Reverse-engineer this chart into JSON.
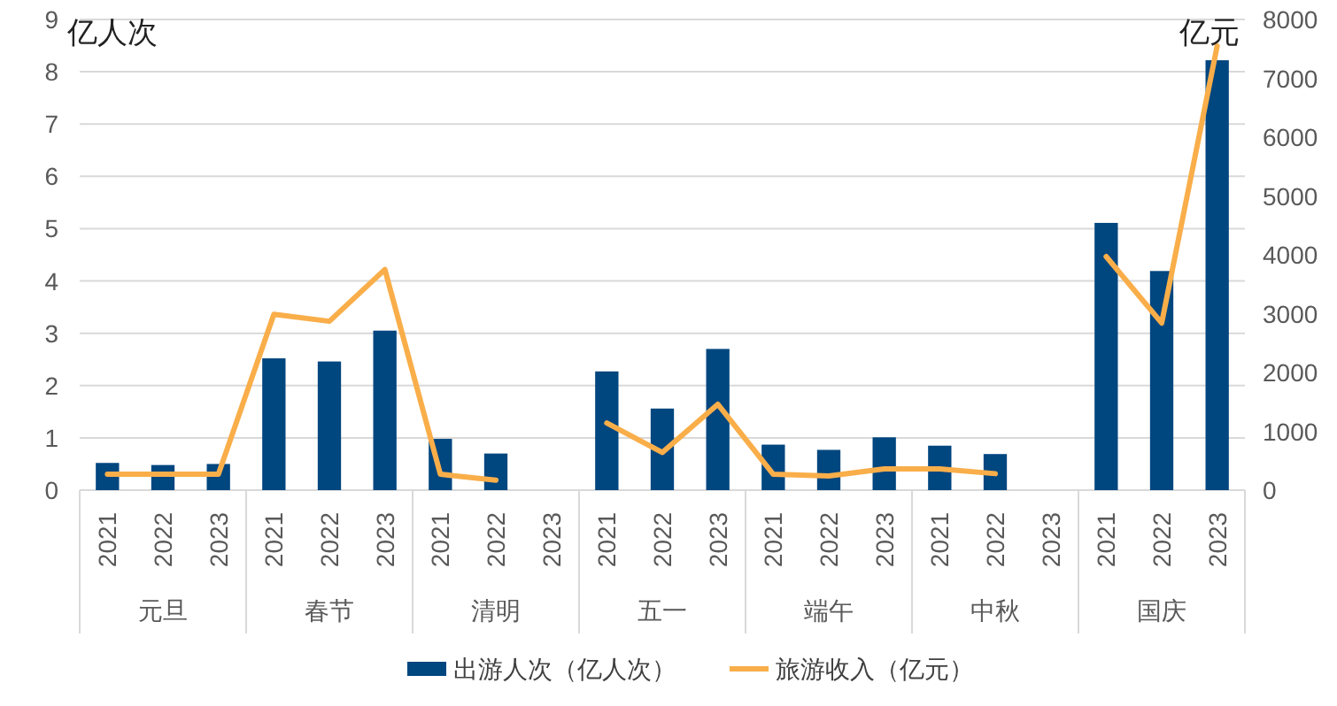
{
  "chart_data": {
    "type": "bar",
    "categories": [
      "2021",
      "2022",
      "2023",
      "2021",
      "2022",
      "2023",
      "2021",
      "2022",
      "2023",
      "2021",
      "2022",
      "2023",
      "2021",
      "2022",
      "2023",
      "2021",
      "2022",
      "2023",
      "2021",
      "2022",
      "2023"
    ],
    "annotations": [
      "元旦",
      "春节",
      "清明",
      "五一",
      "端午",
      "中秋",
      "国庆"
    ],
    "ylabel": "亿人次",
    "y2label": "亿元",
    "series": [
      {
        "name": "出游人次（亿人次）",
        "color": "#00467f",
        "values": [
          0.52,
          0.48,
          0.5,
          2.52,
          2.46,
          3.05,
          0.98,
          0.7,
          null,
          2.27,
          1.56,
          2.7,
          0.87,
          0.77,
          1.01,
          0.85,
          0.69,
          null,
          5.11,
          4.19,
          8.22
        ]
      },
      {
        "name": "旅游收入（亿元）",
        "type": "line",
        "axis": "y2",
        "color": "#f9ae4a",
        "values": [
          270,
          270,
          270,
          2990,
          2870,
          3750,
          270,
          170,
          null,
          1140,
          640,
          1460,
          270,
          240,
          360,
          360,
          280,
          null,
          3970,
          2840,
          7550
        ]
      }
    ],
    "ylim": [
      0,
      9
    ],
    "yticks": [
      0,
      1,
      2,
      3,
      4,
      5,
      6,
      7,
      8,
      9
    ],
    "y2lim": [
      0,
      8000
    ],
    "y2ticks": [
      0,
      1000,
      2000,
      3000,
      4000,
      5000,
      6000,
      7000,
      8000
    ],
    "grid": "y",
    "legend": "bottom"
  }
}
